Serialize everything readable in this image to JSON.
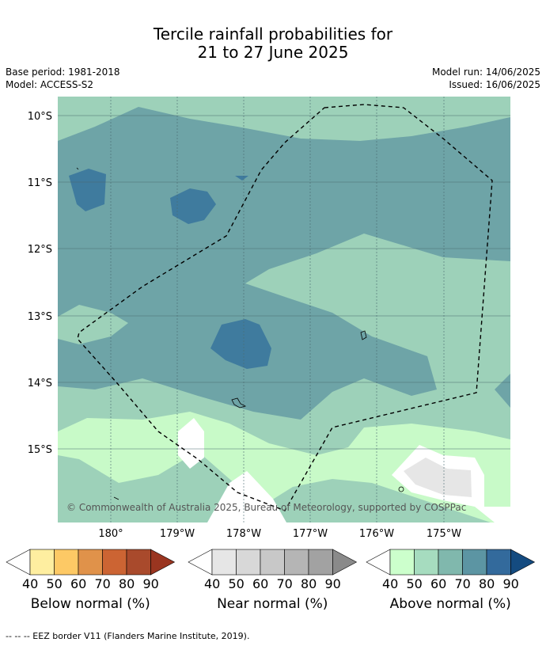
{
  "title": {
    "line1": "Tercile rainfall probabilities for",
    "line2": "21 to 27 June 2025"
  },
  "meta": {
    "base_period": "Base period: 1981-2018",
    "model": "Model: ACCESS-S2",
    "model_run": "Model run: 14/06/2025",
    "issued": "Issued: 16/06/2025"
  },
  "map": {
    "lat_labels": [
      "10°S",
      "11°S",
      "12°S",
      "13°S",
      "14°S",
      "15°S"
    ],
    "lon_labels": [
      "180°",
      "179°W",
      "178°W",
      "177°W",
      "176°W",
      "175°W"
    ],
    "copyright": "© Commonwealth of Australia 2025, Bureau of Meteorology, supported by COSPPac"
  },
  "colorbars": [
    {
      "label": "Below normal (%)",
      "ticks": [
        "40",
        "50",
        "60",
        "70",
        "80",
        "90"
      ],
      "colors": [
        "#ffffff",
        "#feeea0",
        "#fdc965",
        "#e0924a",
        "#cc6433",
        "#a94a2c",
        "#9a3520"
      ]
    },
    {
      "label": "Near normal (%)",
      "ticks": [
        "40",
        "50",
        "60",
        "70",
        "80",
        "90"
      ],
      "colors": [
        "#ffffff",
        "#e6e6e6",
        "#d8d8d8",
        "#c8c8c8",
        "#b5b5b5",
        "#a2a2a2",
        "#8a8a8a"
      ]
    },
    {
      "label": "Above normal (%)",
      "ticks": [
        "40",
        "50",
        "60",
        "70",
        "80",
        "90"
      ],
      "colors": [
        "#ffffff",
        "#ccffcc",
        "#a6dcbf",
        "#80b8ad",
        "#5c95a3",
        "#336a9c",
        "#144b80"
      ]
    }
  ],
  "footer": "-- -- -- EEZ border V11 (Flanders Marine Institute, 2019)."
}
